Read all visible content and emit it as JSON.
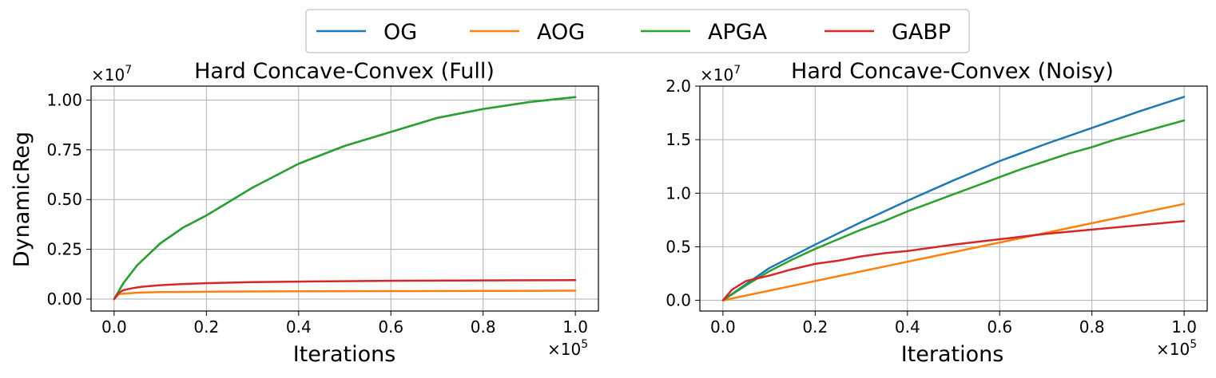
{
  "legend": {
    "entries": [
      {
        "name": "OG",
        "color": "#1f77b4"
      },
      {
        "name": "AOG",
        "color": "#ff7f0e"
      },
      {
        "name": "APGA",
        "color": "#2ca02c"
      },
      {
        "name": "GABP",
        "color": "#d62728"
      }
    ]
  },
  "chart_data": [
    {
      "type": "line",
      "title": "Hard Concave-Convex (Full)",
      "xlabel": "Iterations",
      "ylabel": "DynamicReg",
      "x_multiplier": "×10",
      "x_multiplier_exp": "5",
      "y_multiplier": "×10",
      "y_multiplier_exp": "7",
      "xlim": [
        -0.05,
        1.05
      ],
      "ylim": [
        -0.06,
        1.07
      ],
      "xticks": [
        0.0,
        0.2,
        0.4,
        0.6,
        0.8,
        1.0
      ],
      "xtick_labels": [
        "0.0",
        "0.2",
        "0.4",
        "0.6",
        "0.8",
        "1.0"
      ],
      "yticks": [
        0.0,
        0.25,
        0.5,
        0.75,
        1.0
      ],
      "ytick_labels": [
        "0.00",
        "0.25",
        "0.50",
        "0.75",
        "1.00"
      ],
      "grid": true,
      "series": [
        {
          "name": "OG",
          "color": "#1f77b4",
          "x": [
            0,
            0.02,
            0.05,
            0.1,
            0.15,
            0.2,
            0.3,
            0.4,
            0.5,
            0.6,
            0.7,
            0.8,
            0.9,
            1.0
          ],
          "y": [
            0,
            0.08,
            0.17,
            0.28,
            0.36,
            0.42,
            0.56,
            0.68,
            0.77,
            0.84,
            0.91,
            0.955,
            0.99,
            1.015
          ]
        },
        {
          "name": "AOG",
          "color": "#ff7f0e",
          "x": [
            0,
            0.01,
            0.05,
            0.1,
            0.2,
            0.4,
            0.6,
            0.8,
            1.0
          ],
          "y": [
            0,
            0.025,
            0.032,
            0.035,
            0.037,
            0.039,
            0.04,
            0.041,
            0.042
          ]
        },
        {
          "name": "APGA",
          "color": "#2ca02c",
          "x": [
            0,
            0.02,
            0.05,
            0.1,
            0.15,
            0.2,
            0.3,
            0.4,
            0.5,
            0.6,
            0.7,
            0.8,
            0.9,
            1.0
          ],
          "y": [
            0,
            0.08,
            0.17,
            0.28,
            0.36,
            0.42,
            0.56,
            0.68,
            0.77,
            0.84,
            0.91,
            0.955,
            0.99,
            1.015
          ]
        },
        {
          "name": "GABP",
          "color": "#d62728",
          "x": [
            0,
            0.01,
            0.02,
            0.04,
            0.06,
            0.1,
            0.15,
            0.2,
            0.3,
            0.4,
            0.6,
            0.8,
            1.0
          ],
          "y": [
            0,
            0.03,
            0.045,
            0.055,
            0.062,
            0.07,
            0.076,
            0.08,
            0.085,
            0.088,
            0.092,
            0.094,
            0.095
          ]
        }
      ]
    },
    {
      "type": "line",
      "title": "Hard Concave-Convex (Noisy)",
      "xlabel": "Iterations",
      "ylabel": "",
      "x_multiplier": "×10",
      "x_multiplier_exp": "5",
      "y_multiplier": "×10",
      "y_multiplier_exp": "7",
      "xlim": [
        -0.05,
        1.05
      ],
      "ylim": [
        -0.1,
        2.0
      ],
      "xticks": [
        0.0,
        0.2,
        0.4,
        0.6,
        0.8,
        1.0
      ],
      "xtick_labels": [
        "0.0",
        "0.2",
        "0.4",
        "0.6",
        "0.8",
        "1.0"
      ],
      "yticks": [
        0.0,
        0.5,
        1.0,
        1.5,
        2.0
      ],
      "ytick_labels": [
        "0.0",
        "0.5",
        "1.0",
        "1.5",
        "2.0"
      ],
      "grid": true,
      "series": [
        {
          "name": "OG",
          "color": "#1f77b4",
          "x": [
            0,
            0.05,
            0.1,
            0.2,
            0.3,
            0.4,
            0.5,
            0.6,
            0.7,
            0.8,
            0.9,
            1.0
          ],
          "y": [
            0,
            0.15,
            0.3,
            0.52,
            0.73,
            0.93,
            1.12,
            1.3,
            1.46,
            1.61,
            1.76,
            1.9
          ]
        },
        {
          "name": "AOG",
          "color": "#ff7f0e",
          "x": [
            0,
            0.2,
            0.4,
            0.6,
            0.8,
            1.0
          ],
          "y": [
            0,
            0.18,
            0.36,
            0.54,
            0.72,
            0.9
          ]
        },
        {
          "name": "APGA",
          "color": "#2ca02c",
          "x": [
            0,
            0.05,
            0.1,
            0.15,
            0.2,
            0.25,
            0.3,
            0.35,
            0.4,
            0.45,
            0.5,
            0.55,
            0.6,
            0.65,
            0.7,
            0.75,
            0.8,
            0.85,
            0.9,
            0.95,
            1.0
          ],
          "y": [
            0,
            0.14,
            0.27,
            0.38,
            0.48,
            0.57,
            0.66,
            0.74,
            0.83,
            0.91,
            0.99,
            1.07,
            1.15,
            1.23,
            1.3,
            1.37,
            1.43,
            1.5,
            1.56,
            1.62,
            1.68
          ]
        },
        {
          "name": "GABP",
          "color": "#d62728",
          "x": [
            0,
            0.02,
            0.05,
            0.08,
            0.1,
            0.15,
            0.2,
            0.25,
            0.3,
            0.35,
            0.4,
            0.5,
            0.6,
            0.7,
            0.8,
            0.9,
            1.0
          ],
          "y": [
            0,
            0.1,
            0.18,
            0.21,
            0.23,
            0.29,
            0.34,
            0.37,
            0.41,
            0.44,
            0.46,
            0.52,
            0.57,
            0.62,
            0.66,
            0.7,
            0.74
          ]
        }
      ]
    }
  ]
}
